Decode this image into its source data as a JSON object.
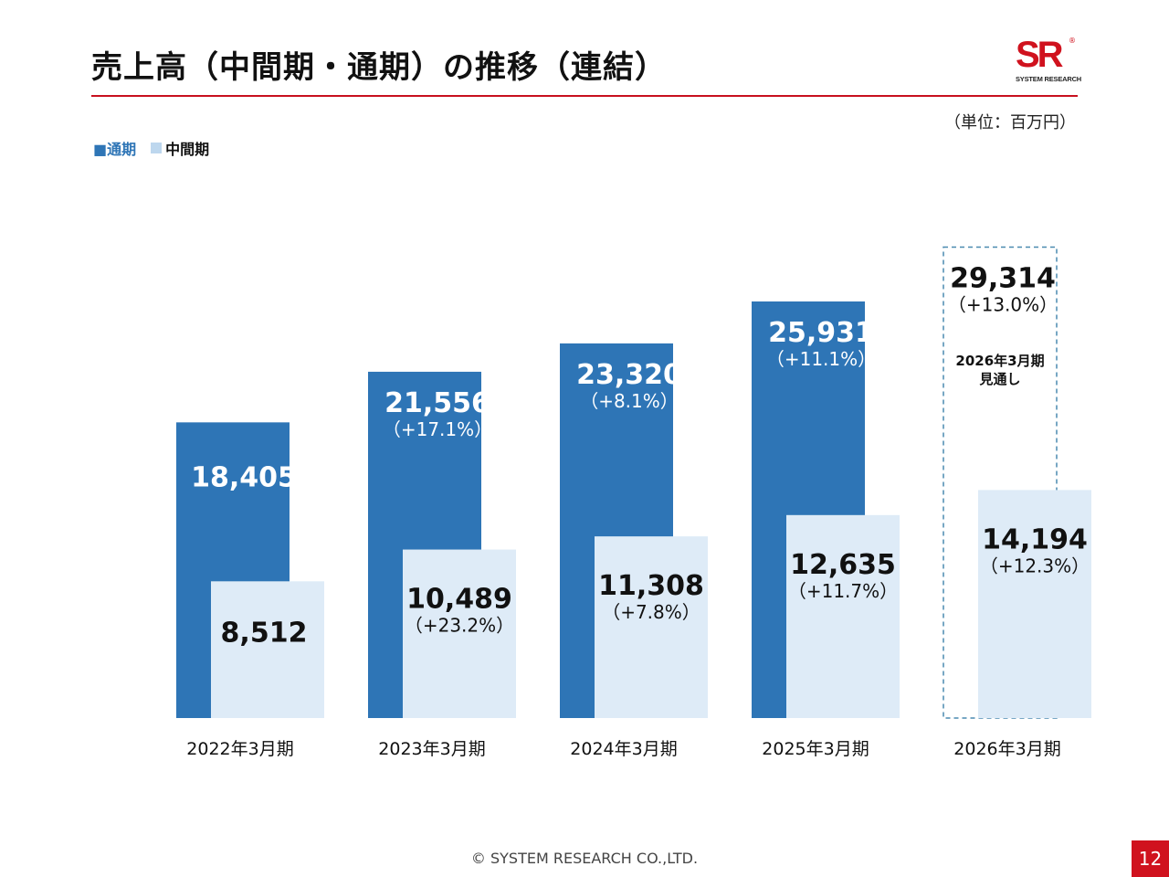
{
  "header": {
    "title": "売上高（中間期・通期）の推移（連結）",
    "unit": "（単位：百万円）",
    "logo_mark": "SR",
    "logo_reg": "®",
    "logo_text": "SYSTEM RESEARCH"
  },
  "legend": {
    "full_year": "■通期",
    "interim": "中間期"
  },
  "colors": {
    "full_year": "#2e75b6",
    "interim": "#deebf7",
    "accent": "#c8101e",
    "forecast_border": "#4a8ab0"
  },
  "chart_data": {
    "type": "bar",
    "title": "売上高（中間期・通期）の推移（連結）",
    "ylabel": "百万円",
    "ylim": [
      0,
      30000
    ],
    "categories": [
      "2022年3月期",
      "2023年3月期",
      "2024年3月期",
      "2025年3月期",
      "2026年3月期"
    ],
    "series": [
      {
        "name": "通期",
        "values": [
          18405,
          21556,
          23320,
          25931,
          29314
        ],
        "labels": [
          "18,405",
          "21,556",
          "23,320",
          "25,931",
          "29,314"
        ],
        "growth": [
          "",
          "（+17.1%）",
          "（+8.1%）",
          "（+11.1%）",
          "（+13.0%）"
        ],
        "forecast": [
          false,
          false,
          false,
          false,
          true
        ]
      },
      {
        "name": "中間期",
        "values": [
          8512,
          10489,
          11308,
          12635,
          14194
        ],
        "labels": [
          "8,512",
          "10,489",
          "11,308",
          "12,635",
          "14,194"
        ],
        "growth": [
          "",
          "（+23.2%）",
          "（+7.8%）",
          "（+11.7%）",
          "（+12.3%）"
        ]
      }
    ],
    "forecast_note": [
      "2026年3月期",
      "見通し"
    ]
  },
  "footer": {
    "copyright": "© SYSTEM RESEARCH CO.,LTD.",
    "page": "12"
  }
}
